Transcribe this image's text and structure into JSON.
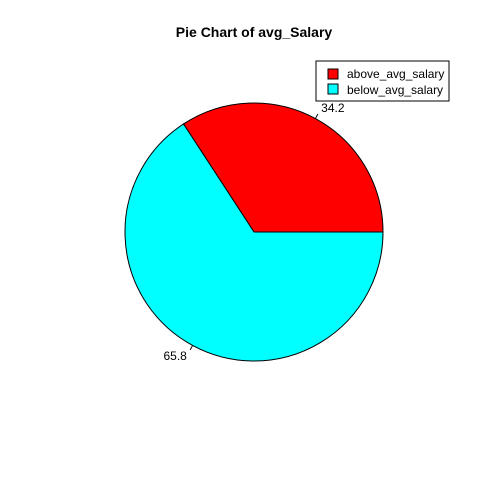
{
  "chart_data": {
    "type": "pie",
    "title": "Pie Chart of avg_Salary",
    "labels": [
      "above_avg_salary",
      "below_avg_salary"
    ],
    "values": [
      34.2,
      65.8
    ],
    "value_labels": [
      "34.2",
      "65.8"
    ],
    "colors": [
      "#ff0000",
      "#00ffff"
    ],
    "legend": {
      "placement": "top-right",
      "entries": [
        "above_avg_salary",
        "below_avg_salary"
      ]
    },
    "start_angle_deg": 0,
    "direction": "counterclockwise"
  }
}
